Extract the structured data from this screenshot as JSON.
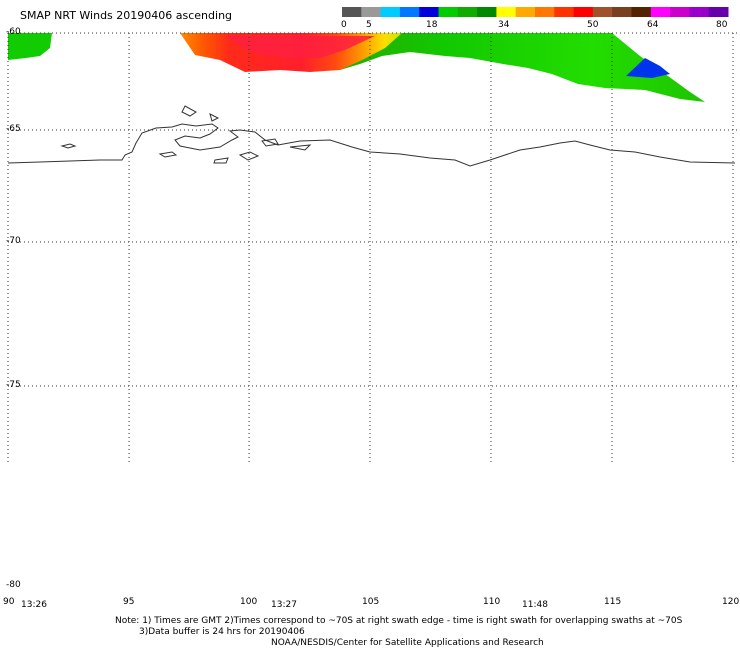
{
  "title": "SMAP NRT Winds 20190406 ascending",
  "colorbar": {
    "tick_labels": [
      "0",
      "5",
      "18",
      "34",
      "50",
      "64",
      "80"
    ],
    "segments": [
      {
        "color": "#555555"
      },
      {
        "color": "#999999"
      },
      {
        "color": "#00ccff"
      },
      {
        "color": "#0077ff"
      },
      {
        "color": "#0000dd"
      },
      {
        "color": "#00cc00"
      },
      {
        "color": "#11aa00"
      },
      {
        "color": "#008800"
      },
      {
        "color": "#ffff00"
      },
      {
        "color": "#ffaa00"
      },
      {
        "color": "#ff7700"
      },
      {
        "color": "#ff3300"
      },
      {
        "color": "#ff0000"
      },
      {
        "color": "#a0522d"
      },
      {
        "color": "#7a3f1f"
      },
      {
        "color": "#552200"
      },
      {
        "color": "#ff00ff"
      },
      {
        "color": "#cc00cc"
      },
      {
        "color": "#9900cc"
      },
      {
        "color": "#6600aa"
      }
    ]
  },
  "map": {
    "lat_labels": [
      "-60",
      "-65",
      "-70",
      "-75",
      "-80"
    ],
    "lon_labels": [
      "90",
      "95",
      "100",
      "105",
      "110",
      "115",
      "120"
    ],
    "time_labels": [
      "13:26",
      "13:27",
      "11:48"
    ]
  },
  "note_line1": "Note: 1) Times are GMT 2)Times correspond to ~70S at right swath edge - time is right swath for overlapping swaths at ~70S",
  "note_line2": "3)Data buffer is 24 hrs for 20190406",
  "credit": "NOAA/NESDIS/Center for Satellite Applications and Research"
}
